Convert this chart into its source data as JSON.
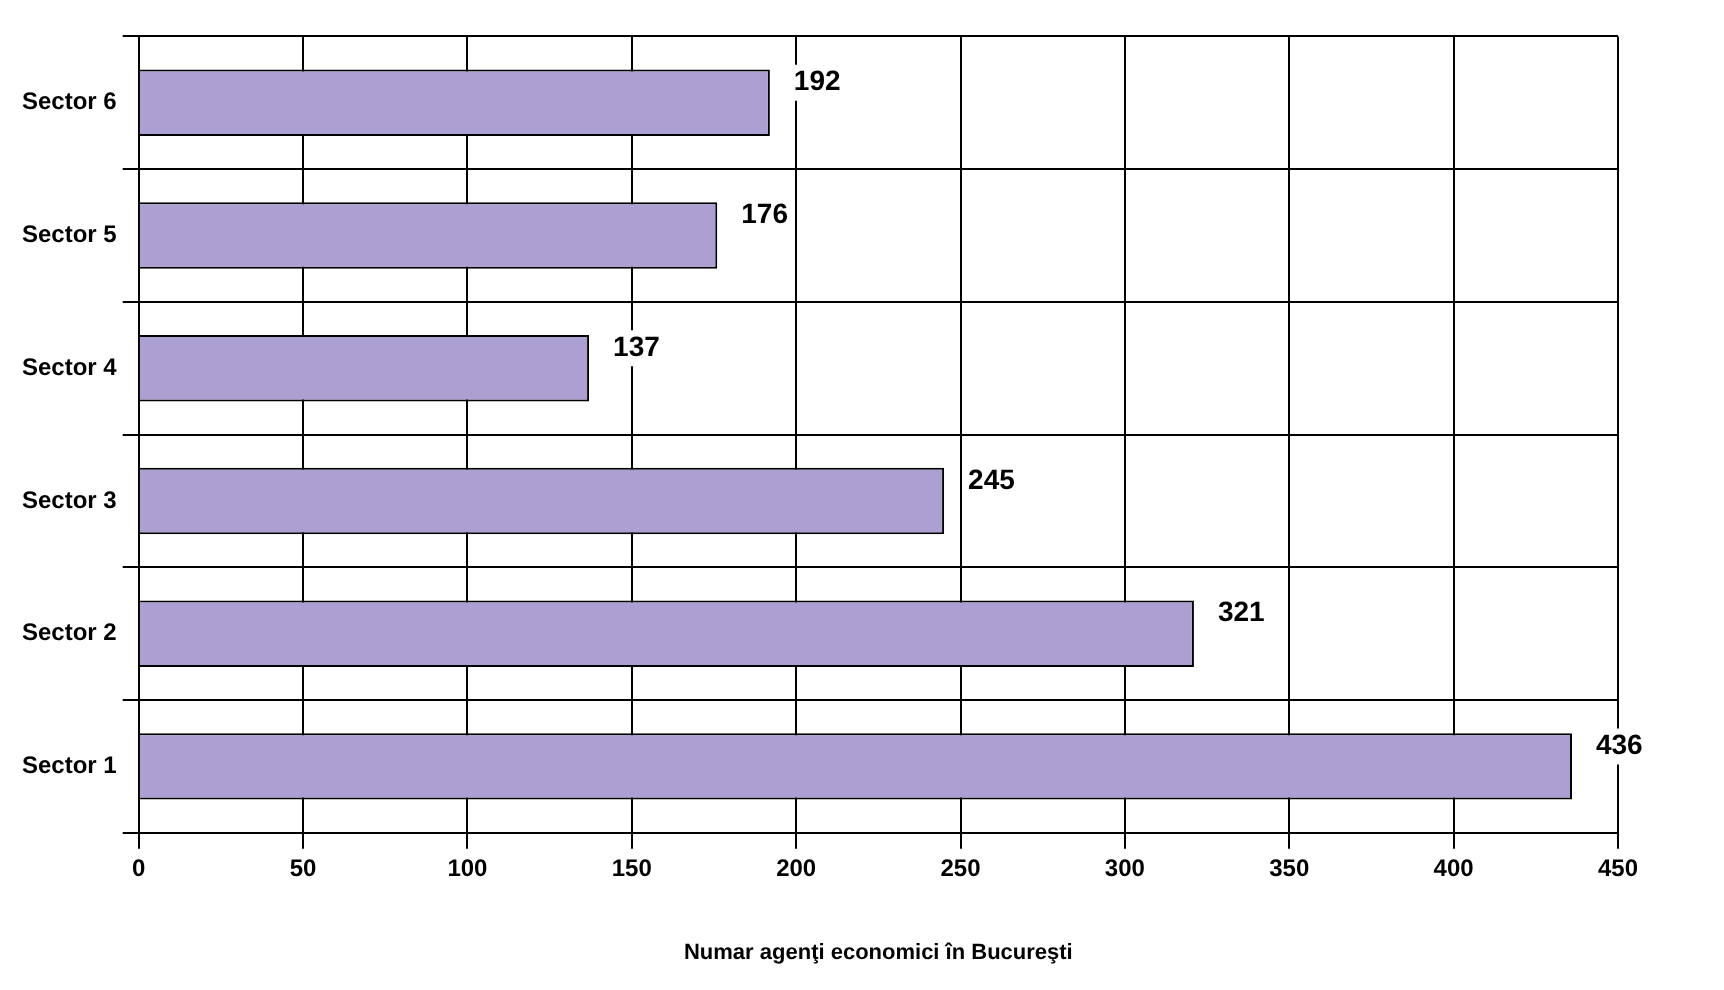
{
  "chart_data": {
    "type": "bar",
    "orientation": "horizontal",
    "xlabel": "Numar agenţi economici în Bucureşti",
    "categories": [
      "Sector 6",
      "Sector 5",
      "Sector 4",
      "Sector 3",
      "Sector 2",
      "Sector 1"
    ],
    "values": [
      192,
      176,
      137,
      245,
      321,
      436
    ],
    "color": "#ac9fd1",
    "xlim": [
      0,
      450
    ],
    "xticks": [
      0,
      50,
      100,
      150,
      200,
      250,
      300,
      350,
      400,
      450
    ],
    "grid": true,
    "legend": false,
    "data_labels": true
  }
}
